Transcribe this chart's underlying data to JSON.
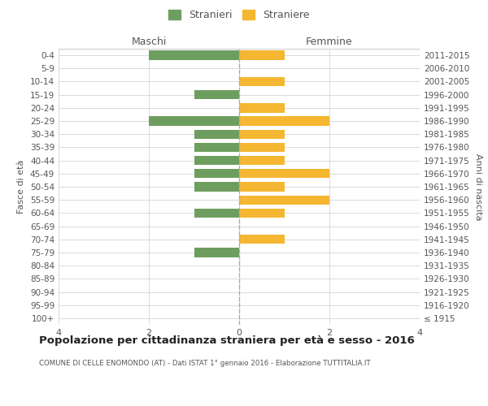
{
  "age_groups": [
    "100+",
    "95-99",
    "90-94",
    "85-89",
    "80-84",
    "75-79",
    "70-74",
    "65-69",
    "60-64",
    "55-59",
    "50-54",
    "45-49",
    "40-44",
    "35-39",
    "30-34",
    "25-29",
    "20-24",
    "15-19",
    "10-14",
    "5-9",
    "0-4"
  ],
  "birth_years": [
    "≤ 1915",
    "1916-1920",
    "1921-1925",
    "1926-1930",
    "1931-1935",
    "1936-1940",
    "1941-1945",
    "1946-1950",
    "1951-1955",
    "1956-1960",
    "1961-1965",
    "1966-1970",
    "1971-1975",
    "1976-1980",
    "1981-1985",
    "1986-1990",
    "1991-1995",
    "1996-2000",
    "2001-2005",
    "2006-2010",
    "2011-2015"
  ],
  "maschi": [
    0,
    0,
    0,
    0,
    0,
    1,
    0,
    0,
    1,
    0,
    1,
    1,
    1,
    1,
    1,
    2,
    0,
    1,
    0,
    0,
    2
  ],
  "femmine": [
    0,
    0,
    0,
    0,
    0,
    0,
    1,
    0,
    1,
    2,
    1,
    2,
    1,
    1,
    1,
    2,
    1,
    0,
    1,
    0,
    1
  ],
  "maschi_color": "#6e9e5f",
  "femmine_color": "#f5b731",
  "background_color": "#ffffff",
  "grid_color": "#cccccc",
  "center_line_color": "#aaaaaa",
  "title": "Popolazione per cittadinanza straniera per età e sesso - 2016",
  "subtitle": "COMUNE DI CELLE ENOMONDO (AT) - Dati ISTAT 1° gennaio 2016 - Elaborazione TUTTITALIA.IT",
  "xlabel_left": "Maschi",
  "xlabel_right": "Femmine",
  "ylabel_left": "Fasce di età",
  "ylabel_right": "Anni di nascita",
  "legend_maschi": "Stranieri",
  "legend_femmine": "Straniere",
  "xlim": 4,
  "bar_height": 0.7
}
